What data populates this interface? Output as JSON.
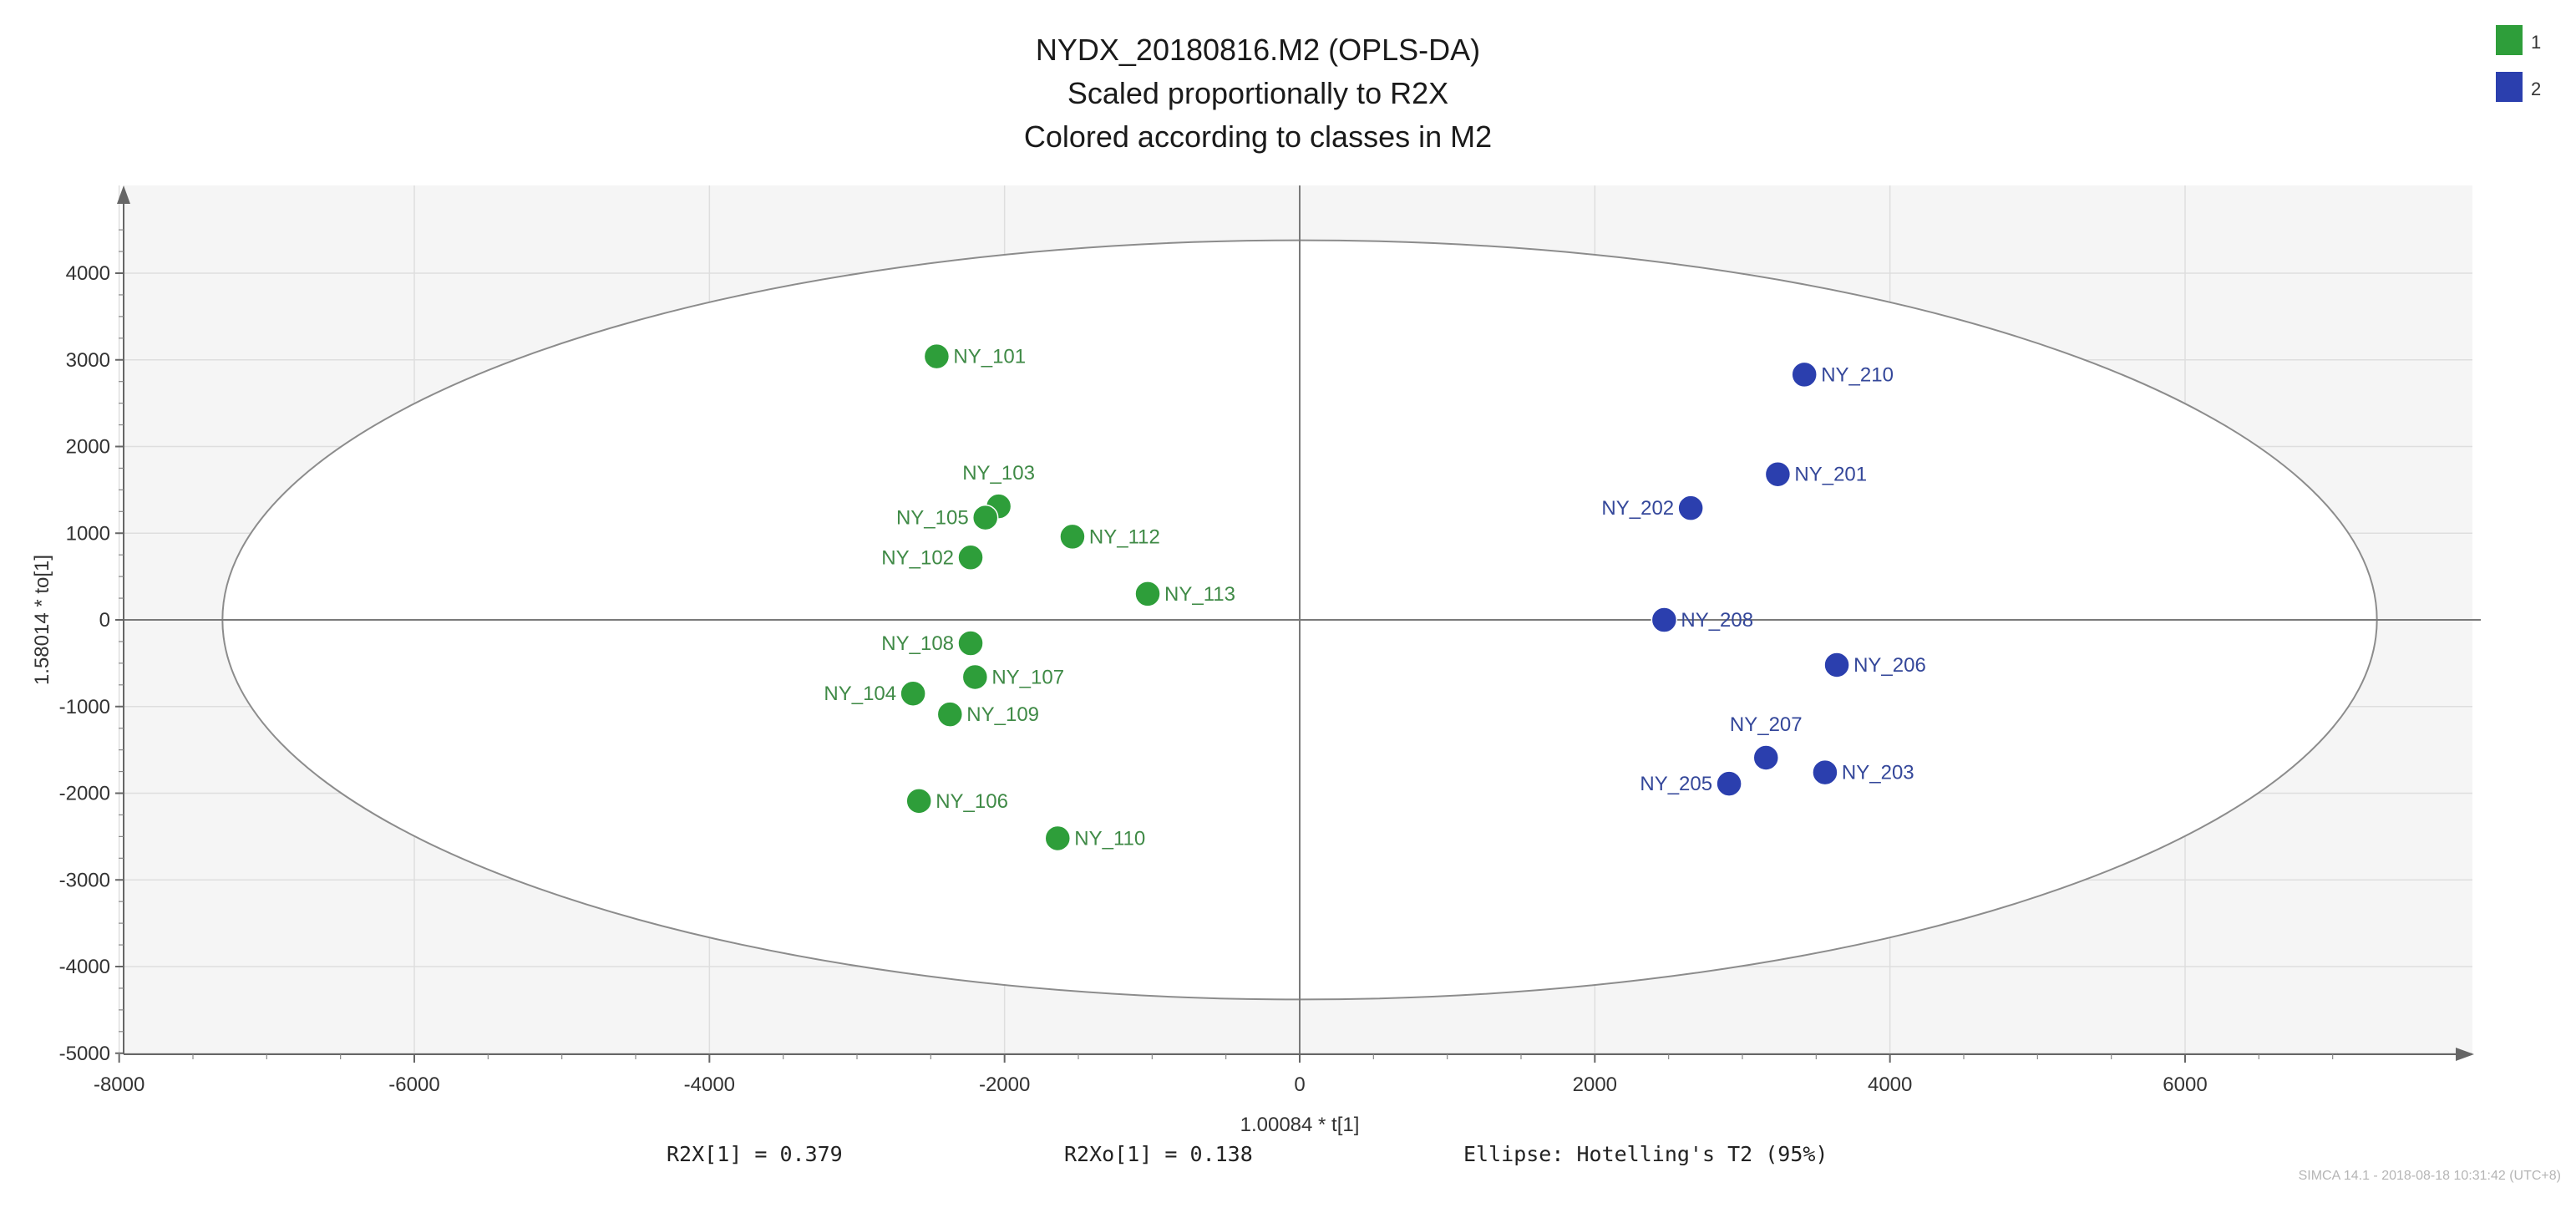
{
  "chart_data": {
    "type": "scatter",
    "title": [
      "NYDX_20180816.M2 (OPLS-DA)",
      "Scaled proportionally to R2X",
      "Colored according to classes in M2"
    ],
    "xlabel": "1.00084 * t[1]",
    "ylabel": "1.58014 * to[1]",
    "xlim": [
      -8000,
      8000
    ],
    "ylim": [
      -5000,
      5000
    ],
    "xticks": [
      -8000,
      -6000,
      -4000,
      -2000,
      0,
      2000,
      4000,
      6000
    ],
    "yticks": [
      4000,
      3000,
      2000,
      1000,
      0,
      -1000,
      -2000,
      -3000,
      -4000,
      -5000
    ],
    "grid": true,
    "ellipse": {
      "label": "Ellipse: Hotelling's T2 (95%)",
      "rx": 7300,
      "ry": 4380
    },
    "legend": [
      {
        "name": "1",
        "color": "#2e9e3a"
      },
      {
        "name": "2",
        "color": "#2b3fae"
      }
    ],
    "series": [
      {
        "name": "1",
        "color": "#2e9e3a",
        "text_color": "#3f8a46",
        "points": [
          {
            "label": "NY_101",
            "x": -2460,
            "y": 3040,
            "side": "right"
          },
          {
            "label": "NY_103",
            "x": -2040,
            "y": 1310,
            "side": "above"
          },
          {
            "label": "NY_105",
            "x": -2130,
            "y": 1180,
            "side": "left"
          },
          {
            "label": "NY_112",
            "x": -1540,
            "y": 960,
            "side": "right"
          },
          {
            "label": "NY_102",
            "x": -2230,
            "y": 720,
            "side": "left"
          },
          {
            "label": "NY_113",
            "x": -1030,
            "y": 300,
            "side": "right"
          },
          {
            "label": "NY_108",
            "x": -2230,
            "y": -270,
            "side": "left"
          },
          {
            "label": "NY_107",
            "x": -2200,
            "y": -660,
            "side": "right"
          },
          {
            "label": "NY_104",
            "x": -2620,
            "y": -850,
            "side": "left"
          },
          {
            "label": "NY_109",
            "x": -2370,
            "y": -1090,
            "side": "right"
          },
          {
            "label": "NY_106",
            "x": -2580,
            "y": -2090,
            "side": "right"
          },
          {
            "label": "NY_110",
            "x": -1640,
            "y": -2520,
            "side": "right"
          }
        ]
      },
      {
        "name": "2",
        "color": "#2b3fae",
        "text_color": "#34479a",
        "points": [
          {
            "label": "NY_210",
            "x": 3420,
            "y": 2830,
            "side": "right"
          },
          {
            "label": "NY_201",
            "x": 3240,
            "y": 1680,
            "side": "right"
          },
          {
            "label": "NY_202",
            "x": 2650,
            "y": 1290,
            "side": "left"
          },
          {
            "label": "NY_208",
            "x": 2470,
            "y": 0,
            "side": "right"
          },
          {
            "label": "NY_206",
            "x": 3640,
            "y": -520,
            "side": "right"
          },
          {
            "label": "NY_207",
            "x": 3160,
            "y": -1590,
            "side": "above"
          },
          {
            "label": "NY_203",
            "x": 3560,
            "y": -1760,
            "side": "right"
          },
          {
            "label": "NY_205",
            "x": 2910,
            "y": -1890,
            "side": "left"
          }
        ]
      }
    ],
    "stats": {
      "r2x": "R2X[1] = 0.379",
      "r2xo": "R2Xo[1] = 0.138"
    },
    "footer": "SIMCA 14.1 - 2018-08-18 10:31:42 (UTC+8)"
  }
}
